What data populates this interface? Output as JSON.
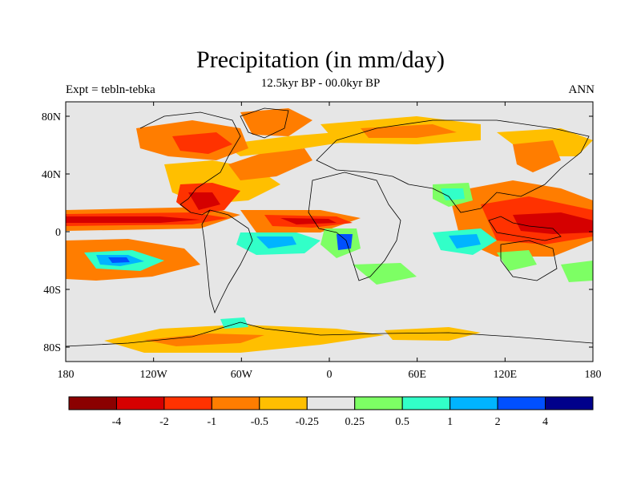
{
  "title": "Precipitation (in mm/day)",
  "subtitle": "12.5kyr BP - 00.0kyr BP",
  "left_label": "Expt = tebln-tebka",
  "right_label": "ANN",
  "colors": {
    "land_bg": "#e6e6e6",
    "coast": "#000000"
  },
  "lat_ticks": [
    "80N",
    "40N",
    "0",
    "40S",
    "80S"
  ],
  "lon_ticks": [
    "180",
    "120W",
    "60W",
    "0",
    "60E",
    "120E",
    "180"
  ],
  "colorbar": {
    "colors": [
      "#8b0000",
      "#d50000",
      "#ff3200",
      "#ff7d00",
      "#ffbf00",
      "#e6e6e6",
      "#7dff64",
      "#32ffc8",
      "#00b4ff",
      "#0050ff",
      "#00008b"
    ],
    "labels": [
      "-4",
      "-2",
      "-1",
      "-0.5",
      "-0.25",
      "0.25",
      "0.5",
      "1",
      "2",
      "4"
    ]
  }
}
